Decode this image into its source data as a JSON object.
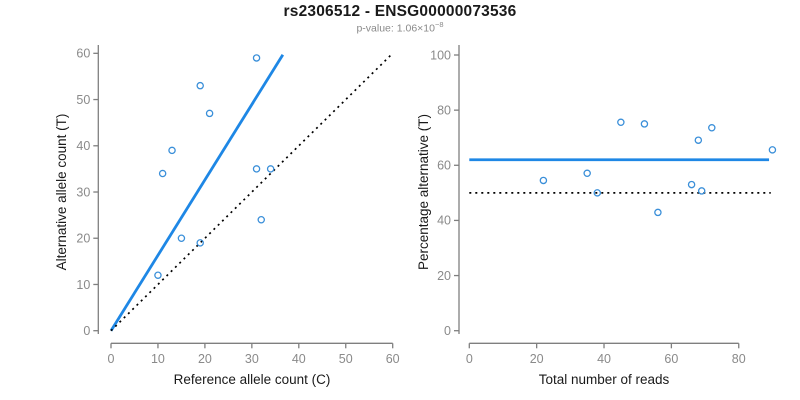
{
  "header": {
    "title": "rs2306512 - ENSG00000073536",
    "subtitle_base": "p-value: 1.06×10",
    "subtitle_exponent": "−8"
  },
  "colors": {
    "accent_line": "#1e87e5",
    "marker": "#3a8fd9",
    "dotted_line": "#000000",
    "axis": "#7f7f7f",
    "tick_label": "#8a8a8a",
    "axis_title": "#1a1a1a"
  },
  "chart_data": [
    {
      "type": "scatter",
      "xlabel": "Reference allele count (C)",
      "ylabel": "Alternative allele count (T)",
      "xlim": [
        0,
        60
      ],
      "ylim": [
        0,
        60
      ],
      "xticks": [
        0,
        10,
        20,
        30,
        40,
        50,
        60
      ],
      "yticks": [
        0,
        10,
        20,
        30,
        40,
        50,
        60
      ],
      "grid": false,
      "points": [
        [
          10,
          12
        ],
        [
          11,
          34
        ],
        [
          13,
          39
        ],
        [
          15,
          20
        ],
        [
          19,
          19
        ],
        [
          19,
          53
        ],
        [
          21,
          47
        ],
        [
          31,
          35
        ],
        [
          31,
          59
        ],
        [
          32,
          24
        ],
        [
          34,
          35
        ]
      ],
      "lines": [
        {
          "style": "solid",
          "x1": 0,
          "y1": 0,
          "x2": 36.6,
          "y2": 59.7
        },
        {
          "style": "dotted",
          "x1": 0,
          "y1": 0,
          "x2": 59.5,
          "y2": 59.5
        }
      ]
    },
    {
      "type": "scatter",
      "xlabel": "Total number of reads",
      "ylabel": "Percentage alternative (T)",
      "xlim": [
        0,
        80
      ],
      "ylim": [
        0,
        100
      ],
      "xticks": [
        0,
        20,
        40,
        60,
        80
      ],
      "yticks": [
        0,
        20,
        40,
        60,
        80,
        100
      ],
      "grid": false,
      "points": [
        [
          22,
          54.5
        ],
        [
          35,
          57.1
        ],
        [
          38,
          50
        ],
        [
          45,
          75.6
        ],
        [
          52,
          75
        ],
        [
          56,
          42.9
        ],
        [
          66,
          53
        ],
        [
          68,
          69.1
        ],
        [
          69,
          50.7
        ],
        [
          72,
          73.6
        ],
        [
          90,
          65.6
        ]
      ],
      "lines": [
        {
          "style": "solid",
          "x1": 0,
          "y1": 62,
          "x2": 89,
          "y2": 62
        },
        {
          "style": "dotted",
          "x1": 0,
          "y1": 50,
          "x2": 89.5,
          "y2": 50
        }
      ]
    }
  ]
}
